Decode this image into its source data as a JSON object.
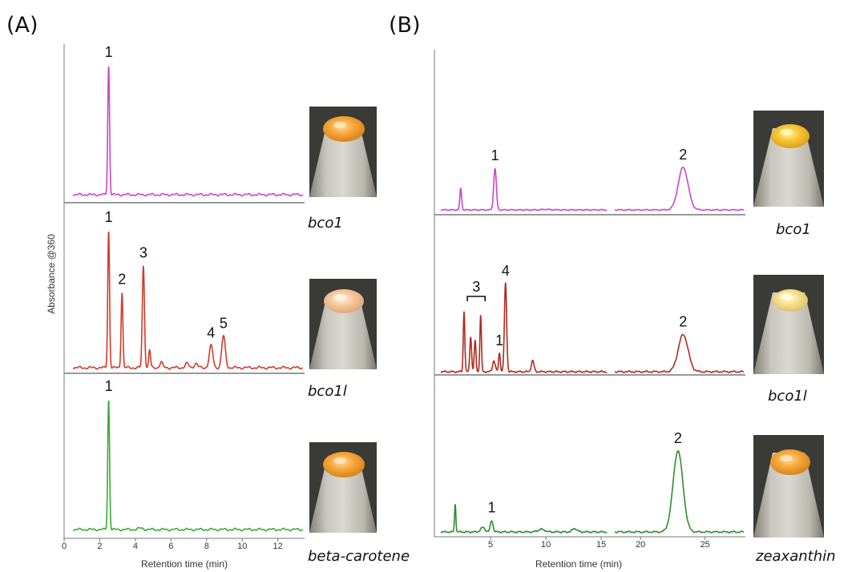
{
  "panels": {
    "A": {
      "letter": "(A)"
    },
    "B": {
      "letter": "(B)"
    }
  },
  "chart_data": [
    {
      "id": "A",
      "type": "line",
      "ylabel": "Absorbance @360",
      "xlabel": "Retention time (min)",
      "xlim": [
        0,
        13.5
      ],
      "xticks": [
        "0",
        "2",
        "4",
        "6",
        "8",
        "10",
        "12"
      ],
      "traces": [
        {
          "sample": "bco1",
          "color": "#cc44cc",
          "peaks": [
            {
              "rt": 2.5,
              "height": 1.0,
              "width": 0.05,
              "label": "1"
            }
          ]
        },
        {
          "sample": "bco1l",
          "color": "#d23a2a",
          "peaks": [
            {
              "rt": 2.5,
              "height": 1.0,
              "width": 0.05,
              "label": "1"
            },
            {
              "rt": 3.25,
              "height": 0.55,
              "width": 0.05,
              "label": "2"
            },
            {
              "rt": 4.45,
              "height": 0.74,
              "width": 0.06,
              "label": "3"
            },
            {
              "rt": 4.8,
              "height": 0.13,
              "width": 0.05
            },
            {
              "rt": 5.45,
              "height": 0.04,
              "width": 0.08
            },
            {
              "rt": 6.9,
              "height": 0.03,
              "width": 0.1
            },
            {
              "rt": 7.4,
              "height": 0.03,
              "width": 0.1
            },
            {
              "rt": 8.25,
              "height": 0.16,
              "width": 0.1,
              "label": "4"
            },
            {
              "rt": 8.95,
              "height": 0.23,
              "width": 0.1,
              "label": "5"
            }
          ]
        },
        {
          "sample": "beta-carotene",
          "color": "#3aaa35",
          "peaks": [
            {
              "rt": 2.5,
              "height": 1.0,
              "width": 0.05,
              "label": "1"
            },
            {
              "rt": 4.3,
              "height": 0.01,
              "width": 0.15
            }
          ]
        }
      ]
    },
    {
      "id": "B",
      "type": "line",
      "xlabel": "Retention time (min)",
      "xlim": [
        0.5,
        28
      ],
      "xticks": [
        "5",
        "10",
        "15",
        "20",
        "25"
      ],
      "axis_break": [
        15.5,
        18
      ],
      "traces": [
        {
          "sample": "bco1",
          "color": "#cc44cc",
          "peaks": [
            {
              "rt": 2.3,
              "height": 0.38,
              "width": 0.08
            },
            {
              "rt": 5.4,
              "height": 0.74,
              "width": 0.12,
              "label": "1"
            },
            {
              "rt": 10.0,
              "height": 0.01,
              "width": 0.3
            },
            {
              "rt": 23.3,
              "height": 0.76,
              "width": 0.38,
              "label": "2"
            }
          ]
        },
        {
          "sample": "bco1l",
          "color": "#b02a1e",
          "peaks": [
            {
              "rt": 2.6,
              "height": 0.65,
              "width": 0.07
            },
            {
              "rt": 3.2,
              "height": 0.38,
              "width": 0.08
            },
            {
              "rt": 3.6,
              "height": 0.33,
              "width": 0.08
            },
            {
              "rt": 4.1,
              "height": 0.6,
              "width": 0.07
            },
            {
              "rt": 5.3,
              "height": 0.12,
              "width": 0.12
            },
            {
              "rt": 5.8,
              "height": 0.2,
              "width": 0.08,
              "label": "1"
            },
            {
              "rt": 6.35,
              "height": 0.95,
              "width": 0.1,
              "label": "4"
            },
            {
              "rt": 8.8,
              "height": 0.12,
              "width": 0.12
            },
            {
              "rt": 23.3,
              "height": 0.4,
              "width": 0.38,
              "label": "2"
            }
          ],
          "bracket": {
            "from": 2.9,
            "to": 4.5,
            "label": "3"
          }
        },
        {
          "sample": "zeaxanthin",
          "color": "#2e8b2e",
          "peaks": [
            {
              "rt": 1.8,
              "height": 0.32,
              "width": 0.06
            },
            {
              "rt": 4.3,
              "height": 0.05,
              "width": 0.2
            },
            {
              "rt": 5.1,
              "height": 0.13,
              "width": 0.12,
              "label": "1"
            },
            {
              "rt": 9.6,
              "height": 0.03,
              "width": 0.3
            },
            {
              "rt": 12.6,
              "height": 0.04,
              "width": 0.2
            },
            {
              "rt": 22.9,
              "height": 0.92,
              "width": 0.38,
              "label": "2"
            }
          ]
        }
      ]
    }
  ]
}
